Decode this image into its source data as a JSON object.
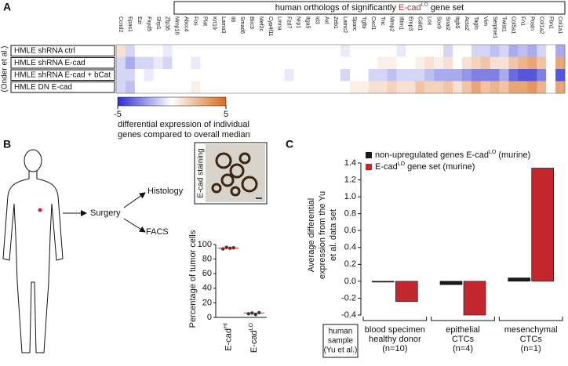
{
  "panel_labels": [
    "A",
    "B",
    "C"
  ],
  "chart_data": [
    {
      "type": "heatmap",
      "title_parts": [
        "human orthologs of significantly ",
        "E-cad",
        "LO",
        " gene set"
      ],
      "side_label": "(Onder et al.)",
      "rows": [
        "HMLE shRNA ctrl",
        "HMLE shRNA E-cad",
        "HMLE shRNA E-cad + bCat",
        "HMLE DN E-cad"
      ],
      "columns": [
        "Ccnd2",
        "Epas1",
        "Ezr",
        "Fxyd5",
        "Sfrp1",
        "Zfp36",
        "Mmp10",
        "Abcc4",
        "Fos",
        "Plat",
        "Krt19",
        "Lama3",
        "Il6",
        "Smad6",
        "Birc3",
        "Mef2c",
        "Cyp4f11",
        "Lmna",
        "Fzd7",
        "Nrp1",
        "Itga5",
        "Id3",
        "Axl",
        "Zeb1",
        "Lamc2",
        "Sparc",
        "Tgfbi",
        "Cxcl1",
        "Tnc",
        "Mmp2",
        "Ifitm1",
        "Emp3",
        "Cald1",
        "Lox",
        "Sox9",
        "Snai2",
        "Itgb5",
        "Acta2",
        "Tagln",
        "Vim",
        "Serpine1",
        "Twist1",
        "Col5a1",
        "Fn1",
        "Postn",
        "Col1a2",
        "Fbn1",
        "Col1a1"
      ],
      "z": [
        [
          1,
          -1,
          0,
          0,
          0,
          -0.5,
          0,
          0,
          0,
          0,
          0,
          0,
          0,
          0,
          0,
          0,
          0,
          0,
          0,
          0,
          0,
          0,
          0,
          0,
          -0.5,
          0,
          0,
          0,
          0,
          0,
          -0.5,
          0,
          0,
          0,
          0,
          -1,
          0,
          0,
          -1,
          -1,
          -1.5,
          -1,
          -2,
          -1.5,
          -2,
          -1,
          0,
          -2
        ],
        [
          -1,
          -2,
          -1,
          -1,
          -0.5,
          -1,
          0,
          0,
          -0.5,
          0,
          0,
          0,
          0,
          0,
          0,
          0,
          0,
          0,
          0,
          0,
          0,
          0,
          0,
          0,
          0,
          0,
          0,
          0,
          0.5,
          0.5,
          0,
          0,
          0.5,
          1,
          0.5,
          1,
          0,
          1,
          1.5,
          2,
          1,
          1,
          2,
          2.5,
          3,
          2,
          0,
          3
        ],
        [
          -1,
          -1,
          0,
          -0.5,
          0,
          0,
          0,
          0,
          0,
          0,
          0,
          0,
          0,
          0,
          0,
          0,
          0,
          0,
          -0.5,
          0,
          0,
          0,
          0,
          0,
          -1,
          0,
          0,
          -1,
          -1,
          -1.5,
          -1,
          -1,
          -1,
          -1.5,
          -2,
          -2,
          -2,
          -2.5,
          -3,
          -3,
          -3,
          -2,
          -3.5,
          -4,
          -4,
          -3,
          0,
          -4
        ],
        [
          -1,
          -1.5,
          0,
          0,
          0,
          0,
          0,
          0,
          0.5,
          0,
          0,
          0,
          0,
          0,
          0,
          0,
          0,
          0,
          0,
          0,
          0,
          0,
          0,
          0,
          0,
          0.5,
          0.5,
          1,
          1,
          1.5,
          1,
          1,
          2,
          1.5,
          1.5,
          2,
          1,
          2,
          3,
          2,
          2.5,
          2,
          3,
          3,
          3.5,
          2.5,
          0,
          3
        ]
      ],
      "zlim": [
        -5,
        5
      ],
      "colorbar_ticks": [
        -5,
        5
      ],
      "colorbar_label": [
        "differential expression of individual",
        "genes compared to overall median"
      ],
      "colors": [
        "#2b2bd4",
        "#ffffff",
        "#d96b1c"
      ],
      "title_color": "#c4262e"
    },
    {
      "type": "strip",
      "ylabel": "Percentage of tumor cells",
      "categories": [
        "E-cad",
        "E-cad"
      ],
      "category_sups": [
        "HI",
        "LO"
      ],
      "values": [
        [
          94,
          96,
          95,
          95.5
        ],
        [
          5,
          6,
          4,
          6.5
        ]
      ],
      "medians": [
        95,
        6
      ],
      "ylim": [
        0,
        100
      ],
      "yticks": [
        0,
        20,
        40,
        60,
        80,
        100
      ],
      "color": "#333333",
      "median_color": "#c4262e"
    },
    {
      "type": "bar",
      "ylabel": [
        "Average differential",
        "expression from the Yu",
        "et al. data set"
      ],
      "categories": [
        [
          "blood specimen",
          "healthy donor",
          "(n=10)"
        ],
        [
          "epithelial",
          "CTCs",
          "(n=4)"
        ],
        [
          "mesenchymal",
          "CTCs",
          "(n=1)"
        ]
      ],
      "sample_label": [
        "human",
        "sample",
        "(Yu et al.)"
      ],
      "series": [
        {
          "name": [
            "non-upregulated genes E-cad",
            "LO",
            " (murine)"
          ],
          "color": "#1a1a1a",
          "values": [
            -0.01,
            -0.04,
            0.04
          ]
        },
        {
          "name": [
            "E-cad",
            "LO",
            " gene set (murine)"
          ],
          "color": "#c4262e",
          "values": [
            -0.24,
            -0.4,
            1.34
          ]
        }
      ],
      "ylim": [
        -0.4,
        1.4
      ],
      "yticks": [
        -0.4,
        -0.2,
        {
          "value": 0,
          "label": "0.0"
        },
        0.2,
        0.4,
        0.6,
        0.8,
        {
          "value": 1,
          "label": "1.0"
        },
        1.2,
        1.4
      ]
    }
  ],
  "panel_b": {
    "steps": [
      "Surgery",
      "Histology",
      "FACS"
    ],
    "image_label": "E-cad staining"
  }
}
